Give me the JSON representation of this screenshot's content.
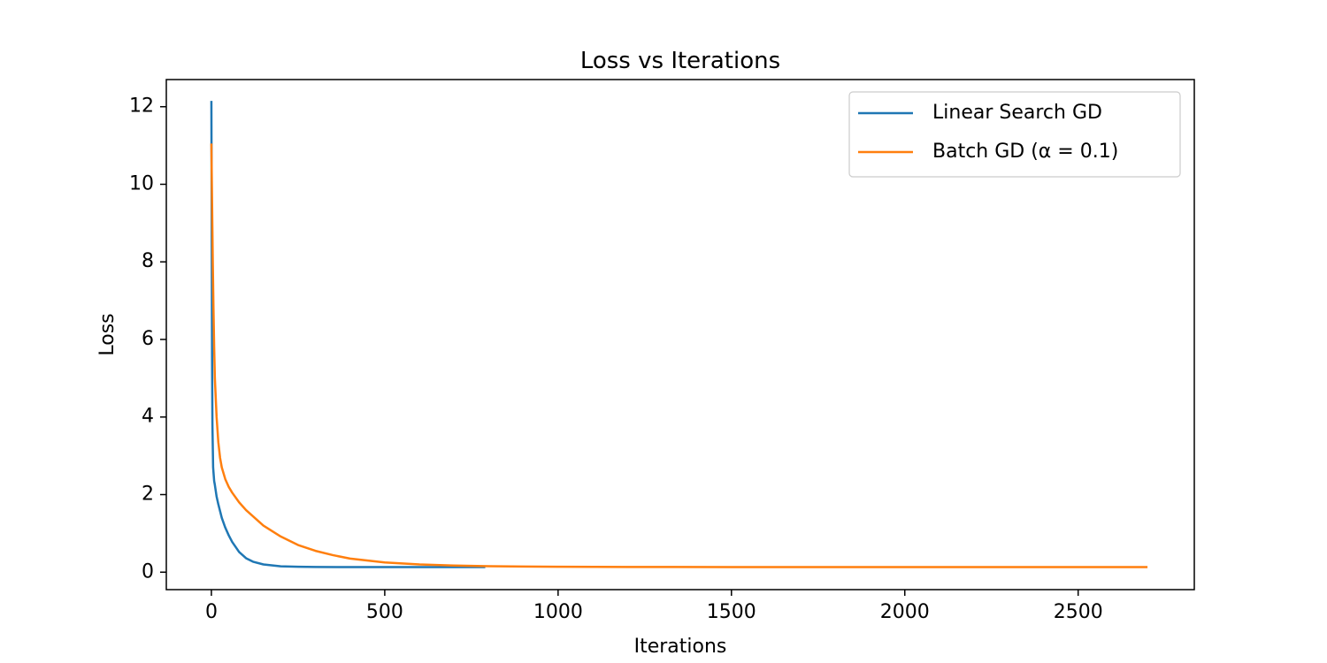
{
  "chart_data": {
    "type": "line",
    "title": "Loss vs Iterations",
    "xlabel": "Iterations",
    "ylabel": "Loss",
    "xlim": [
      -130,
      2835
    ],
    "ylim": [
      -0.45,
      12.7
    ],
    "xticks": [
      0,
      500,
      1000,
      1500,
      2000,
      2500
    ],
    "yticks": [
      0,
      2,
      4,
      6,
      8,
      10,
      12
    ],
    "grid": false,
    "legend_position": "upper-right",
    "series": [
      {
        "name": "Linear Search GD",
        "color": "#1f77b4",
        "x": [
          0,
          1,
          2,
          3,
          5,
          8,
          10,
          15,
          20,
          30,
          40,
          50,
          60,
          80,
          100,
          120,
          150,
          200,
          250,
          300,
          400,
          500,
          600,
          700,
          790
        ],
        "y": [
          12.15,
          8.5,
          5.5,
          3.8,
          2.7,
          2.35,
          2.25,
          1.95,
          1.75,
          1.4,
          1.15,
          0.95,
          0.78,
          0.52,
          0.36,
          0.27,
          0.2,
          0.15,
          0.14,
          0.135,
          0.13,
          0.13,
          0.13,
          0.13,
          0.13
        ]
      },
      {
        "name": "Batch GD (α = 0.1)",
        "color": "#ff7f0e",
        "x": [
          0,
          2,
          4,
          6,
          8,
          10,
          15,
          20,
          25,
          30,
          40,
          50,
          60,
          80,
          100,
          150,
          200,
          250,
          300,
          350,
          400,
          500,
          600,
          700,
          800,
          900,
          1000,
          1200,
          1500,
          2000,
          2500,
          2700
        ],
        "y": [
          11.05,
          9.5,
          8.0,
          6.8,
          5.8,
          5.0,
          4.0,
          3.35,
          2.95,
          2.7,
          2.4,
          2.2,
          2.05,
          1.8,
          1.6,
          1.2,
          0.92,
          0.7,
          0.55,
          0.44,
          0.35,
          0.25,
          0.2,
          0.17,
          0.155,
          0.145,
          0.14,
          0.135,
          0.13,
          0.13,
          0.13,
          0.13
        ]
      }
    ]
  },
  "legend": {
    "items": [
      {
        "label": "Linear Search GD",
        "color": "#1f77b4"
      },
      {
        "label": "Batch GD (α = 0.1)",
        "color": "#ff7f0e"
      }
    ]
  }
}
